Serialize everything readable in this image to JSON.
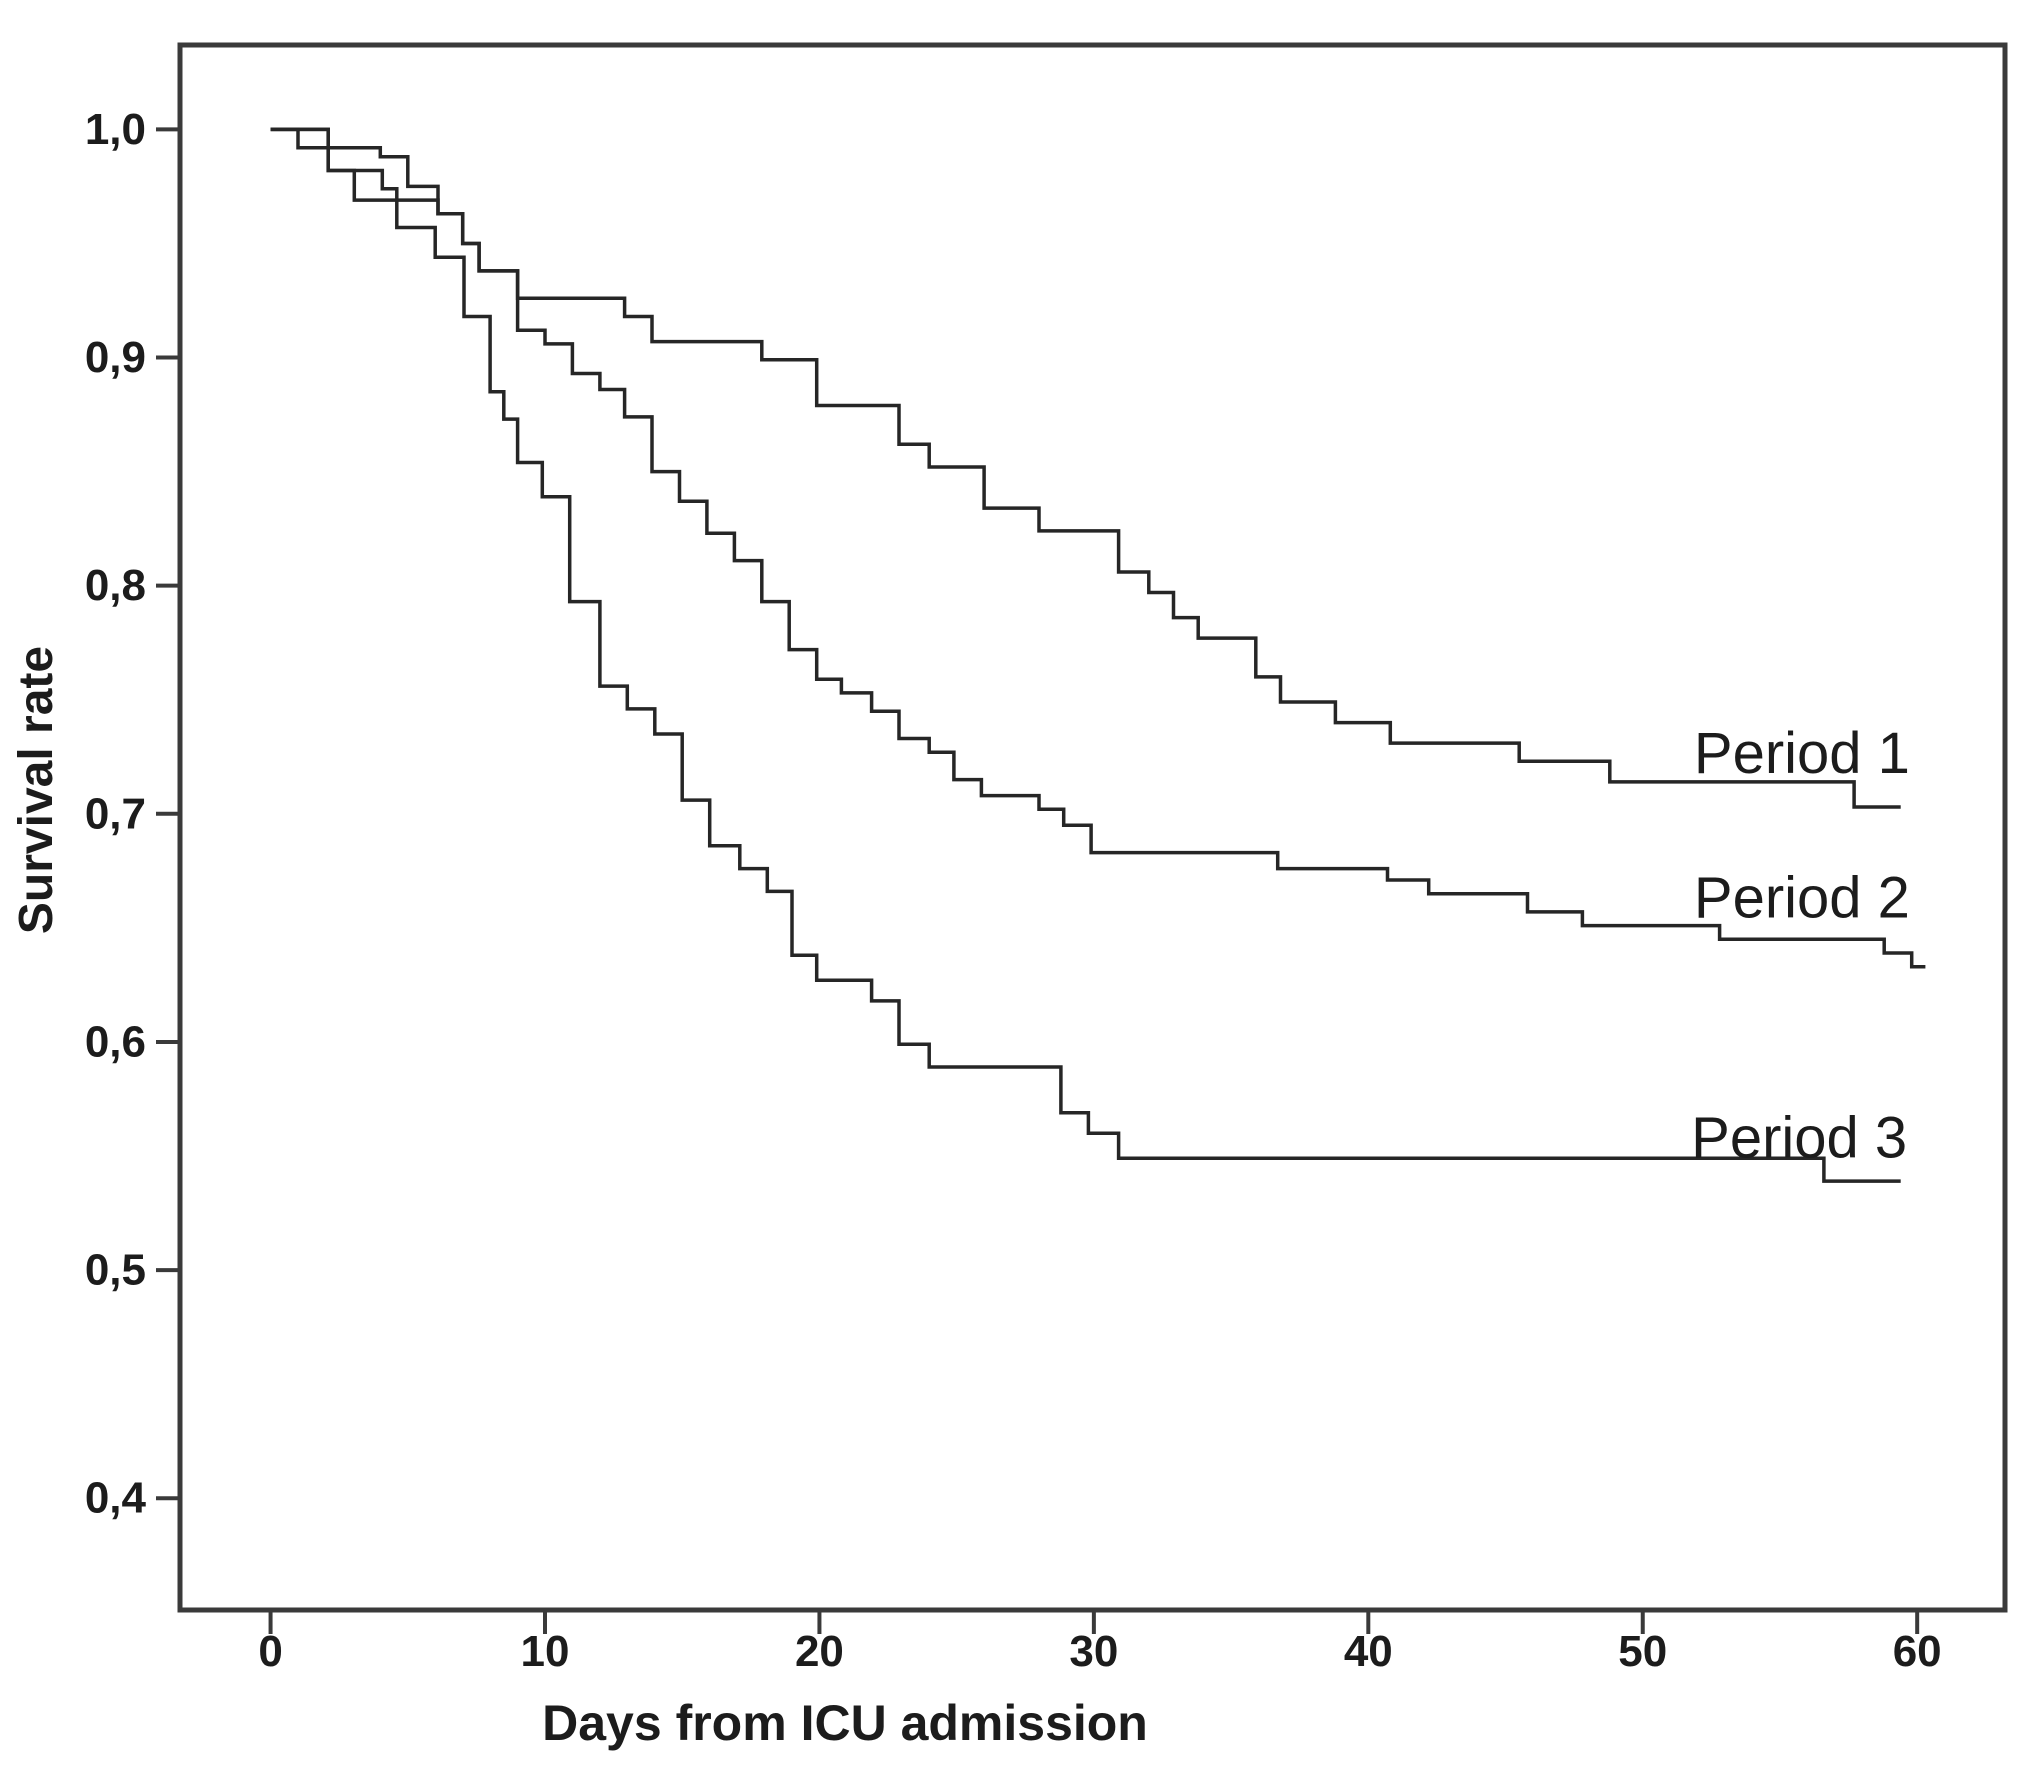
{
  "figure": {
    "background_color": "#ffffff",
    "curve_color": "#262626",
    "frame_color": "#3a3a3a",
    "tick_label_color": "#1c1c1c"
  },
  "chart_data": {
    "type": "line",
    "subtype": "kaplan-meier-step",
    "title": "",
    "xlabel": "Days from ICU admission",
    "ylabel": "Survival rate",
    "decimal_separator": ",",
    "grid": false,
    "legend_position": "inline-right-of-each-curve",
    "xlim": [
      -3.3,
      63.2
    ],
    "ylim": [
      0.351,
      1.037
    ],
    "x_ticks": {
      "values": [
        0,
        10,
        20,
        30,
        40,
        50,
        60
      ],
      "labels": [
        "0",
        "10",
        "20",
        "30",
        "40",
        "50",
        "60"
      ]
    },
    "y_ticks": {
      "values": [
        1.0,
        0.9,
        0.8,
        0.7,
        0.6,
        0.5,
        0.4
      ],
      "labels": [
        "1,0",
        "0,9",
        "0,8",
        "0,7",
        "0,6",
        "0,5",
        "0,4"
      ]
    },
    "series": [
      {
        "name": "Period 1",
        "label": "Period 1",
        "label_anchor": {
          "day": 55.8,
          "survival": 0.7265
        },
        "steps": [
          [
            0,
            1.0
          ],
          [
            1,
            0.992
          ],
          [
            4,
            0.988
          ],
          [
            5,
            0.975
          ],
          [
            6.1,
            0.963
          ],
          [
            7,
            0.95
          ],
          [
            7.6,
            0.938
          ],
          [
            9,
            0.926
          ],
          [
            12.9,
            0.918
          ],
          [
            13.9,
            0.907
          ],
          [
            17.9,
            0.899
          ],
          [
            19.9,
            0.879
          ],
          [
            22.9,
            0.862
          ],
          [
            24,
            0.852
          ],
          [
            26,
            0.834
          ],
          [
            28,
            0.824
          ],
          [
            30.9,
            0.806
          ],
          [
            32,
            0.797
          ],
          [
            32.9,
            0.786
          ],
          [
            33.8,
            0.777
          ],
          [
            35.9,
            0.76
          ],
          [
            36.8,
            0.749
          ],
          [
            38.8,
            0.74
          ],
          [
            40.8,
            0.731
          ],
          [
            45.5,
            0.723
          ],
          [
            48.8,
            0.714
          ],
          [
            57.7,
            0.703
          ],
          [
            59.4,
            0.703
          ]
        ]
      },
      {
        "name": "Period 2",
        "label": "Period 2",
        "label_anchor": {
          "day": 55.8,
          "survival": 0.6632
        },
        "steps": [
          [
            0,
            1.0
          ],
          [
            2.1,
            0.982
          ],
          [
            3.05,
            0.969
          ],
          [
            6.1,
            0.963
          ],
          [
            7,
            0.95
          ],
          [
            7.6,
            0.938
          ],
          [
            9,
            0.912
          ],
          [
            10,
            0.906
          ],
          [
            11,
            0.893
          ],
          [
            12,
            0.886
          ],
          [
            12.9,
            0.874
          ],
          [
            13.9,
            0.85
          ],
          [
            14.9,
            0.837
          ],
          [
            15.9,
            0.823
          ],
          [
            16.9,
            0.811
          ],
          [
            17.9,
            0.793
          ],
          [
            18.9,
            0.772
          ],
          [
            19.9,
            0.759
          ],
          [
            20.8,
            0.753
          ],
          [
            21.9,
            0.745
          ],
          [
            22.9,
            0.733
          ],
          [
            24,
            0.727
          ],
          [
            24.9,
            0.715
          ],
          [
            25.9,
            0.708
          ],
          [
            28,
            0.702
          ],
          [
            28.9,
            0.695
          ],
          [
            29.9,
            0.683
          ],
          [
            36.7,
            0.676
          ],
          [
            40.7,
            0.671
          ],
          [
            42.2,
            0.665
          ],
          [
            45.8,
            0.657
          ],
          [
            47.8,
            0.651
          ],
          [
            52.8,
            0.645
          ],
          [
            58.8,
            0.639
          ],
          [
            59.8,
            0.633
          ],
          [
            60.3,
            0.633
          ]
        ]
      },
      {
        "name": "Period 3",
        "label": "Period 3",
        "label_anchor": {
          "day": 55.7,
          "survival": 0.5579
        },
        "steps": [
          [
            0,
            1.0
          ],
          [
            2.1,
            0.982
          ],
          [
            4.07,
            0.974
          ],
          [
            4.6,
            0.957
          ],
          [
            6,
            0.944
          ],
          [
            7.05,
            0.918
          ],
          [
            8,
            0.885
          ],
          [
            8.5,
            0.873
          ],
          [
            9,
            0.854
          ],
          [
            9.9,
            0.839
          ],
          [
            10.9,
            0.793
          ],
          [
            12,
            0.756
          ],
          [
            13,
            0.746
          ],
          [
            14,
            0.735
          ],
          [
            15,
            0.706
          ],
          [
            16,
            0.686
          ],
          [
            17.1,
            0.676
          ],
          [
            18.1,
            0.666
          ],
          [
            19,
            0.638
          ],
          [
            19.9,
            0.627
          ],
          [
            21.9,
            0.618
          ],
          [
            22.9,
            0.599
          ],
          [
            24,
            0.589
          ],
          [
            28.8,
            0.569
          ],
          [
            29.8,
            0.56
          ],
          [
            30.9,
            0.549
          ],
          [
            56.6,
            0.539
          ],
          [
            59.4,
            0.539
          ]
        ]
      }
    ]
  }
}
